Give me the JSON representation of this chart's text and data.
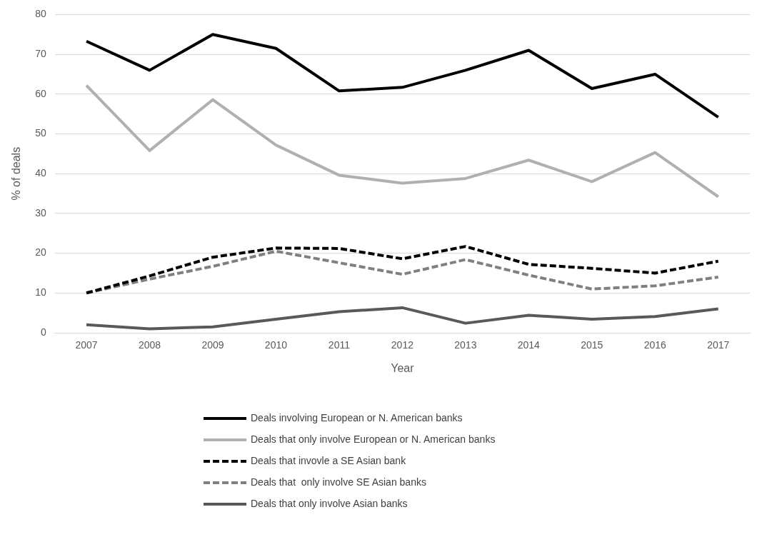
{
  "chart_data": {
    "type": "line",
    "xlabel": "Year",
    "ylabel": "% of deals",
    "categories": [
      "2007",
      "2008",
      "2009",
      "2010",
      "2011",
      "2012",
      "2013",
      "2014",
      "2015",
      "2016",
      "2017"
    ],
    "ylim": [
      0,
      80
    ],
    "yticks": [
      0,
      10,
      20,
      30,
      40,
      50,
      60,
      70,
      80
    ],
    "grid": "y",
    "legend": "bottom",
    "marker": "none",
    "series": [
      {
        "name": "Deals involving European or N. American banks",
        "color": "#000000",
        "line_style": "solid",
        "values": [
          73.3,
          66,
          75,
          71.5,
          60.8,
          61.7,
          66,
          71,
          61.4,
          65,
          54.2
        ]
      },
      {
        "name": "Deals that only involve European or N. American banks",
        "color": "#b0b0b0",
        "line_style": "solid",
        "values": [
          62.2,
          45.8,
          58.6,
          47.2,
          39.6,
          37.6,
          38.8,
          43.4,
          38,
          45.3,
          34.2
        ]
      },
      {
        "name": "Deals that invovle a SE Asian bank",
        "color": "#000000",
        "line_style": "dashed",
        "values": [
          10,
          14.3,
          19,
          21.3,
          21.2,
          18.6,
          21.7,
          17.2,
          16.2,
          15,
          18
        ]
      },
      {
        "name": "Deals that  only involve SE Asian banks",
        "color": "#808080",
        "line_style": "dashed",
        "values": [
          10,
          13.5,
          16.7,
          20.5,
          17.6,
          14.7,
          18.4,
          14.5,
          11,
          11.8,
          14
        ]
      },
      {
        "name": "Deals that only involve Asian banks",
        "color": "#595959",
        "line_style": "solid",
        "values": [
          2,
          1,
          1.5,
          3.4,
          5.3,
          6.3,
          2.4,
          4.4,
          3.4,
          4.1,
          6
        ]
      }
    ]
  }
}
